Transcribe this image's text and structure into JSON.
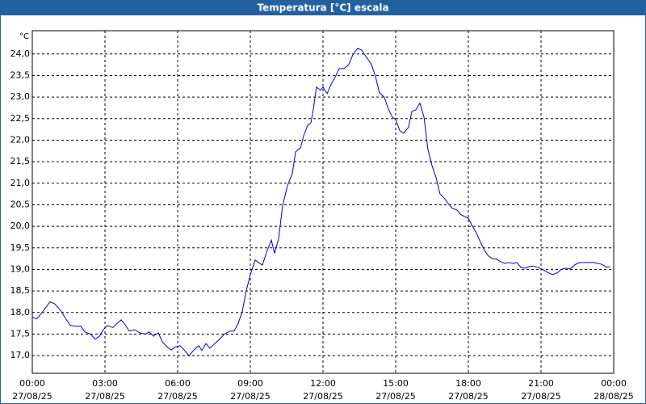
{
  "chart_data": {
    "type": "line",
    "title": "Temperatura [°C] escala",
    "y_unit": "°C",
    "xlim": [
      0,
      24
    ],
    "ylim": [
      16.59,
      24.54
    ],
    "grid": true,
    "xticks": [
      {
        "value": 0,
        "label": "00:00",
        "date": "27/08/25"
      },
      {
        "value": 3,
        "label": "03:00",
        "date": "27/08/25"
      },
      {
        "value": 6,
        "label": "06:00",
        "date": "27/08/25"
      },
      {
        "value": 9,
        "label": "09:00",
        "date": "27/08/25"
      },
      {
        "value": 12,
        "label": "12:00",
        "date": "27/08/25"
      },
      {
        "value": 15,
        "label": "15:00",
        "date": "27/08/25"
      },
      {
        "value": 18,
        "label": "18:00",
        "date": "27/08/25"
      },
      {
        "value": 21,
        "label": "21:00",
        "date": "27/08/25"
      },
      {
        "value": 24,
        "label": "00:00",
        "date": "28/08/25"
      }
    ],
    "yticks": [
      {
        "value": 17,
        "label": "17,0"
      },
      {
        "value": 17.5,
        "label": "17,5"
      },
      {
        "value": 18,
        "label": "18,0"
      },
      {
        "value": 18.5,
        "label": "18,5"
      },
      {
        "value": 19,
        "label": "19,0"
      },
      {
        "value": 19.5,
        "label": "19,5"
      },
      {
        "value": 20,
        "label": "20,0"
      },
      {
        "value": 20.5,
        "label": "20,5"
      },
      {
        "value": 21,
        "label": "21,0"
      },
      {
        "value": 21.5,
        "label": "21,5"
      },
      {
        "value": 22,
        "label": "22,0"
      },
      {
        "value": 22.5,
        "label": "22,5"
      },
      {
        "value": 23,
        "label": "23,0"
      },
      {
        "value": 23.5,
        "label": "23,5"
      },
      {
        "value": 24,
        "label": "24,0"
      }
    ],
    "x": [
      0,
      0.17,
      0.33,
      0.5,
      0.73,
      0.93,
      1.17,
      1.33,
      1.57,
      1.83,
      2,
      2.17,
      2.4,
      2.6,
      2.77,
      2.93,
      3.1,
      3.33,
      3.5,
      3.67,
      3.83,
      4,
      4.23,
      4.43,
      4.67,
      4.83,
      5,
      5.2,
      5.37,
      5.57,
      5.73,
      5.9,
      6.1,
      6.27,
      6.47,
      6.67,
      6.87,
      7,
      7.17,
      7.33,
      7.53,
      7.73,
      7.93,
      8.17,
      8.33,
      8.5,
      8.67,
      8.83,
      9,
      9.2,
      9.33,
      9.5,
      9.67,
      9.87,
      10,
      10.17,
      10.33,
      10.53,
      10.73,
      10.87,
      11.07,
      11.2,
      11.37,
      11.5,
      11.6,
      11.73,
      11.9,
      12,
      12.17,
      12.33,
      12.5,
      12.67,
      12.87,
      13.07,
      13.23,
      13.43,
      13.6,
      13.77,
      14,
      14.17,
      14.33,
      14.53,
      14.7,
      14.87,
      15,
      15.17,
      15.33,
      15.53,
      15.67,
      15.83,
      16,
      16.17,
      16.33,
      16.5,
      16.67,
      16.83,
      17,
      17.17,
      17.33,
      17.53,
      17.67,
      17.83,
      18,
      18.17,
      18.33,
      18.5,
      18.67,
      18.83,
      19,
      19.17,
      19.33,
      19.5,
      19.67,
      19.87,
      20,
      20.17,
      20.33,
      20.53,
      20.67,
      20.87,
      21.07,
      21.27,
      21.47,
      21.67,
      21.83,
      22,
      22.2,
      22.4,
      22.6,
      22.83,
      23.17,
      23.5,
      23.73,
      23.83
    ],
    "series": [
      {
        "name": "Temperatura",
        "color": "#0000c8",
        "values": [
          17.9,
          17.85,
          17.95,
          18.07,
          18.25,
          18.2,
          18.05,
          17.9,
          17.7,
          17.68,
          17.68,
          17.55,
          17.5,
          17.38,
          17.45,
          17.6,
          17.7,
          17.65,
          17.75,
          17.83,
          17.72,
          17.57,
          17.6,
          17.53,
          17.5,
          17.55,
          17.45,
          17.53,
          17.32,
          17.2,
          17.13,
          17.2,
          17.23,
          17.13,
          17.0,
          17.13,
          17.23,
          17.12,
          17.28,
          17.17,
          17.28,
          17.38,
          17.5,
          17.57,
          17.57,
          17.75,
          18.03,
          18.5,
          18.88,
          19.22,
          19.16,
          19.1,
          19.4,
          19.68,
          19.37,
          19.72,
          20.47,
          20.94,
          21.22,
          21.73,
          21.82,
          22.1,
          22.35,
          22.4,
          22.72,
          23.23,
          23.16,
          23.23,
          23.08,
          23.29,
          23.46,
          23.66,
          23.66,
          23.76,
          23.98,
          24.13,
          24.09,
          23.94,
          23.76,
          23.47,
          23.1,
          23.0,
          22.72,
          22.53,
          22.48,
          22.22,
          22.16,
          22.3,
          22.67,
          22.7,
          22.86,
          22.53,
          21.79,
          21.41,
          21.13,
          20.75,
          20.66,
          20.53,
          20.42,
          20.38,
          20.28,
          20.23,
          20.19,
          20.0,
          19.85,
          19.63,
          19.44,
          19.31,
          19.25,
          19.24,
          19.18,
          19.14,
          19.16,
          19.14,
          19.16,
          19.05,
          19.03,
          19.07,
          19.08,
          19.05,
          19.0,
          18.93,
          18.88,
          18.92,
          19.0,
          19.03,
          19.01,
          19.11,
          19.16,
          19.16,
          19.16,
          19.12,
          19.05,
          19.07
        ]
      }
    ]
  }
}
